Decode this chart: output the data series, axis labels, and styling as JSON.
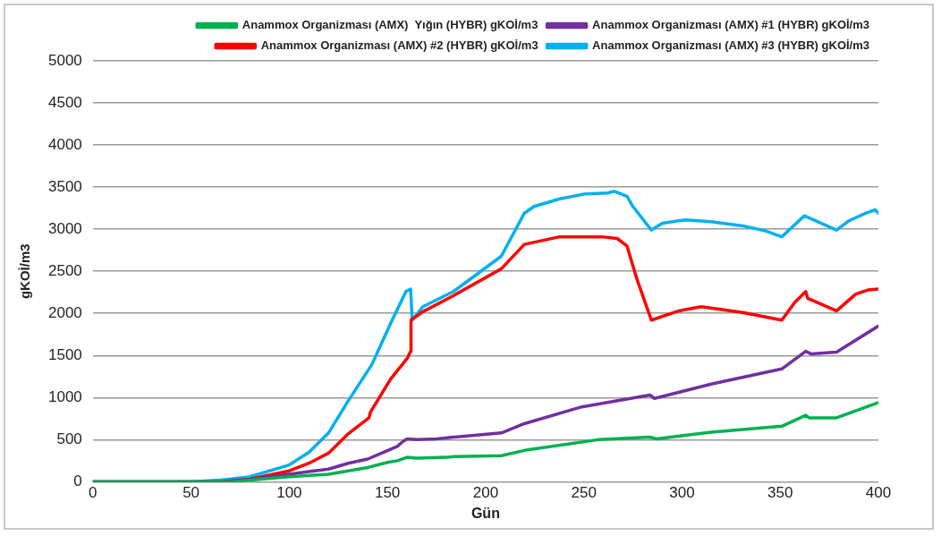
{
  "chart_data": {
    "type": "line",
    "xlabel": "Gün",
    "ylabel": "gKOİ/m3",
    "xlim": [
      0,
      400
    ],
    "xticks": [
      0,
      50,
      100,
      150,
      200,
      250,
      300,
      350,
      400
    ],
    "ylim": [
      0,
      5000
    ],
    "yticks": [
      0,
      500,
      1000,
      1500,
      2000,
      2500,
      3000,
      3500,
      4000,
      4500,
      5000
    ],
    "grid": "y",
    "legend": "top right",
    "marker": "none",
    "line_style": "solid",
    "series": [
      {
        "name": "Anammox Organizması (AMX)  Yığın (HYBR) gKOİ/m3",
        "color": "#00b050",
        "x": [
          0,
          70,
          100,
          120,
          130,
          140,
          150,
          155,
          160,
          165,
          180,
          183.6,
          208,
          221.3,
          257.4,
          283.6,
          287,
          314.8,
          350.8,
          363,
          364.7,
          378.7,
          400
        ],
        "values": [
          0,
          0,
          60,
          90,
          130,
          170,
          230,
          250,
          290,
          280,
          290,
          300,
          310,
          380,
          500,
          530,
          510,
          590,
          660,
          790,
          760,
          760,
          940
        ]
      },
      {
        "name": "Anammox Organizması (AMX) #1 (HYBR) gKOİ/m3",
        "color": "#7030a0",
        "x": [
          0,
          70,
          100,
          110,
          120,
          130,
          140,
          150,
          155,
          158,
          160,
          165,
          175,
          183.6,
          208,
          219.7,
          249,
          283.6,
          286,
          314.8,
          350.8,
          363,
          365.6,
          378.7,
          400
        ],
        "values": [
          0,
          0,
          90,
          120,
          150,
          220,
          270,
          370,
          420,
          480,
          510,
          500,
          510,
          530,
          580,
          690,
          890,
          1030,
          990,
          1160,
          1340,
          1550,
          1520,
          1540,
          1850
        ]
      },
      {
        "name": "Anammox Organizması (AMX) #2 (HYBR) gKOİ/m3",
        "color": "#ff0000",
        "x": [
          0,
          65,
          80,
          100,
          110,
          120,
          130,
          140.6,
          141.4,
          151.6,
          160.2,
          161.8,
          162,
          168,
          183.6,
          208,
          219.7,
          237.7,
          259,
          267,
          272,
          277,
          284.4,
          298.4,
          309.8,
          331,
          350.8,
          357.4,
          363,
          364,
          378.7,
          388.5,
          395,
          400
        ],
        "values": [
          0,
          0,
          30,
          130,
          220,
          340,
          570,
          760,
          830,
          1220,
          1470,
          1550,
          1920,
          2020,
          2210,
          2530,
          2820,
          2910,
          2910,
          2890,
          2800,
          2410,
          1920,
          2030,
          2080,
          2010,
          1920,
          2130,
          2260,
          2180,
          2030,
          2230,
          2280,
          2290
        ]
      },
      {
        "name": "Anammox Organizması (AMX) #3 (HYBR) gKOİ/m3",
        "color": "#00b0f0",
        "x": [
          0,
          50,
          65,
          80,
          100,
          110,
          120,
          130,
          142,
          151.6,
          159.4,
          161.8,
          162.6,
          168,
          183.6,
          208,
          219.7,
          224.6,
          237.7,
          250.8,
          262,
          265.6,
          272,
          275,
          284.4,
          290,
          301.6,
          314.8,
          331,
          342.6,
          350.8,
          362.3,
          378.7,
          385,
          393.4,
          398.4,
          400
        ],
        "values": [
          0,
          0,
          20,
          60,
          200,
          350,
          580,
          960,
          1390,
          1880,
          2260,
          2290,
          1920,
          2080,
          2260,
          2680,
          3190,
          3270,
          3360,
          3420,
          3430,
          3450,
          3390,
          3270,
          2990,
          3070,
          3110,
          3090,
          3040,
          2980,
          2910,
          3160,
          2990,
          3100,
          3190,
          3230,
          3190
        ]
      }
    ]
  }
}
